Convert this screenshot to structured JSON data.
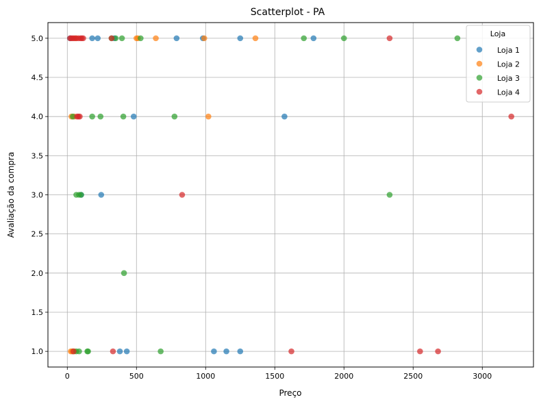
{
  "chart_data": {
    "type": "scatter",
    "title": "Scatterplot - PA",
    "xlabel": "Preço",
    "ylabel": "Avaliação da compra",
    "xlim": [
      -140,
      3370
    ],
    "ylim": [
      0.8,
      5.2
    ],
    "xticks": [
      0,
      500,
      1000,
      1500,
      2000,
      2500,
      3000
    ],
    "xtick_labels": [
      "0",
      "500",
      "1000",
      "1500",
      "2000",
      "2500",
      "3000"
    ],
    "yticks": [
      1.0,
      1.5,
      2.0,
      2.5,
      3.0,
      3.5,
      4.0,
      4.5,
      5.0
    ],
    "ytick_labels": [
      "1.0",
      "1.5",
      "2.0",
      "2.5",
      "3.0",
      "3.5",
      "4.0",
      "4.5",
      "5.0"
    ],
    "grid": true,
    "legend": {
      "title": "Loja",
      "placement": "top-right"
    },
    "series": [
      {
        "name": "Loja 1",
        "color": "#1f77b4",
        "points": [
          [
            20,
            5
          ],
          [
            180,
            5
          ],
          [
            220,
            5
          ],
          [
            340,
            5
          ],
          [
            790,
            5
          ],
          [
            980,
            5
          ],
          [
            1250,
            5
          ],
          [
            1780,
            5
          ],
          [
            480,
            4
          ],
          [
            1570,
            4
          ],
          [
            100,
            3
          ],
          [
            245,
            3
          ],
          [
            40,
            1
          ],
          [
            380,
            1
          ],
          [
            430,
            1
          ],
          [
            1060,
            1
          ],
          [
            1150,
            1
          ],
          [
            1250,
            1
          ]
        ]
      },
      {
        "name": "Loja 2",
        "color": "#ff7f0e",
        "points": [
          [
            60,
            5
          ],
          [
            500,
            5
          ],
          [
            510,
            5
          ],
          [
            640,
            5
          ],
          [
            990,
            5
          ],
          [
            1360,
            5
          ],
          [
            30,
            4
          ],
          [
            50,
            4
          ],
          [
            1020,
            4
          ],
          [
            25,
            1
          ],
          [
            35,
            1
          ],
          [
            50,
            1
          ]
        ]
      },
      {
        "name": "Loja 3",
        "color": "#2ca02c",
        "points": [
          [
            320,
            5
          ],
          [
            350,
            5
          ],
          [
            395,
            5
          ],
          [
            530,
            5
          ],
          [
            1710,
            5
          ],
          [
            2000,
            5
          ],
          [
            2820,
            5
          ],
          [
            40,
            4
          ],
          [
            180,
            4
          ],
          [
            240,
            4
          ],
          [
            405,
            4
          ],
          [
            775,
            4
          ],
          [
            65,
            3
          ],
          [
            85,
            3
          ],
          [
            100,
            3
          ],
          [
            2330,
            3
          ],
          [
            410,
            2
          ],
          [
            65,
            1
          ],
          [
            85,
            1
          ],
          [
            145,
            1
          ],
          [
            150,
            1
          ],
          [
            675,
            1
          ]
        ]
      },
      {
        "name": "Loja 4",
        "color": "#d62728",
        "points": [
          [
            20,
            5
          ],
          [
            30,
            5
          ],
          [
            40,
            5
          ],
          [
            50,
            5
          ],
          [
            65,
            5
          ],
          [
            80,
            5
          ],
          [
            95,
            5
          ],
          [
            105,
            5
          ],
          [
            115,
            5
          ],
          [
            320,
            5
          ],
          [
            2330,
            5
          ],
          [
            70,
            4
          ],
          [
            80,
            4
          ],
          [
            90,
            4
          ],
          [
            3210,
            4
          ],
          [
            830,
            3
          ],
          [
            45,
            1
          ],
          [
            330,
            1
          ],
          [
            1620,
            1
          ],
          [
            2550,
            1
          ],
          [
            2680,
            1
          ]
        ]
      }
    ]
  }
}
